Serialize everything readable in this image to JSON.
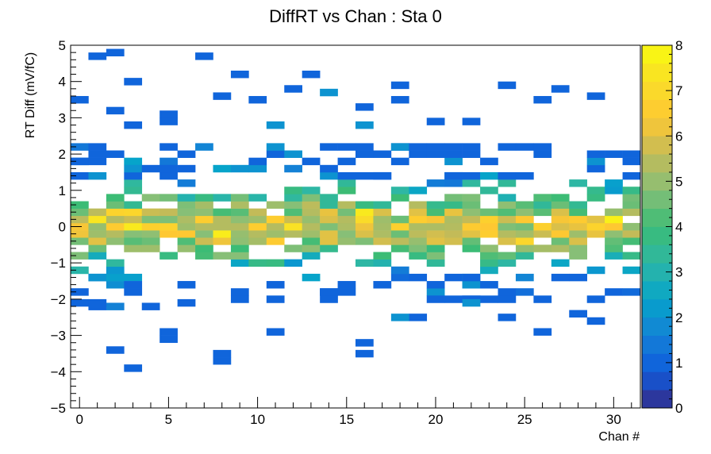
{
  "chart_data": {
    "type": "heatmap",
    "title": "DiffRT vs Chan : Sta 0",
    "xlabel": "Chan #",
    "ylabel": "RT Diff (mV/fC)",
    "xlim": [
      -0.5,
      31.5
    ],
    "ylim": [
      -5,
      5
    ],
    "x_ticks": [
      "0",
      "5",
      "10",
      "15",
      "20",
      "25",
      "30"
    ],
    "y_ticks": [
      "−5",
      "−4",
      "−3",
      "−2",
      "−1",
      "0",
      "1",
      "2",
      "3",
      "4",
      "5"
    ],
    "colorbar": {
      "min": 0,
      "max": 8,
      "ticks": [
        "0",
        "1",
        "2",
        "3",
        "4",
        "5",
        "6",
        "7",
        "8"
      ]
    },
    "bin_width_y": 0.2,
    "palette": "kBird",
    "colors": {
      "low": "#352a87",
      "mid_blue": "#1668d9",
      "teal": "#21b0b9",
      "green": "#7fbf7b",
      "tan": "#d8ba55",
      "high": "#f9fb0e"
    },
    "sparse_cells": [
      [
        1,
        4.7,
        1
      ],
      [
        2,
        3.2,
        1
      ],
      [
        0,
        3.5,
        1
      ],
      [
        2,
        4.8,
        1
      ],
      [
        3,
        4.0,
        1
      ],
      [
        3,
        2.8,
        1
      ],
      [
        5,
        2.9,
        1
      ],
      [
        5,
        3.1,
        1
      ],
      [
        7,
        4.7,
        1
      ],
      [
        8,
        3.6,
        1
      ],
      [
        9,
        4.2,
        1
      ],
      [
        10,
        3.5,
        1
      ],
      [
        11,
        2.8,
        2
      ],
      [
        12,
        3.8,
        1
      ],
      [
        13,
        4.2,
        1
      ],
      [
        14,
        3.7,
        2
      ],
      [
        16,
        3.3,
        1
      ],
      [
        16,
        2.8,
        2
      ],
      [
        18,
        3.9,
        1
      ],
      [
        18,
        3.5,
        1
      ],
      [
        20,
        2.9,
        1
      ],
      [
        22,
        2.9,
        1
      ],
      [
        24,
        3.9,
        1
      ],
      [
        26,
        3.5,
        1
      ],
      [
        27,
        3.8,
        1
      ],
      [
        29,
        3.6,
        1
      ],
      [
        2,
        -3.4,
        1
      ],
      [
        3,
        -3.9,
        1
      ],
      [
        5,
        -2.9,
        1
      ],
      [
        5,
        -3.1,
        1
      ],
      [
        8,
        -3.7,
        1
      ],
      [
        8,
        -3.5,
        1
      ],
      [
        11,
        -2.9,
        1
      ],
      [
        16,
        -3.2,
        1
      ],
      [
        16,
        -3.5,
        1
      ],
      [
        19,
        -2.5,
        1
      ],
      [
        26,
        -2.9,
        1
      ],
      [
        29,
        -2.6,
        1
      ],
      [
        0,
        -2.1,
        1
      ],
      [
        1,
        -2.1,
        1
      ],
      [
        4,
        -2.2,
        1
      ],
      [
        6,
        -2.1,
        1
      ],
      [
        14,
        -2.0,
        1
      ],
      [
        14,
        -1.8,
        1
      ],
      [
        20,
        -2.0,
        1
      ],
      [
        22,
        -2.1,
        2
      ],
      [
        24,
        -2.5,
        1
      ],
      [
        18,
        -2.5,
        2
      ]
    ]
  }
}
